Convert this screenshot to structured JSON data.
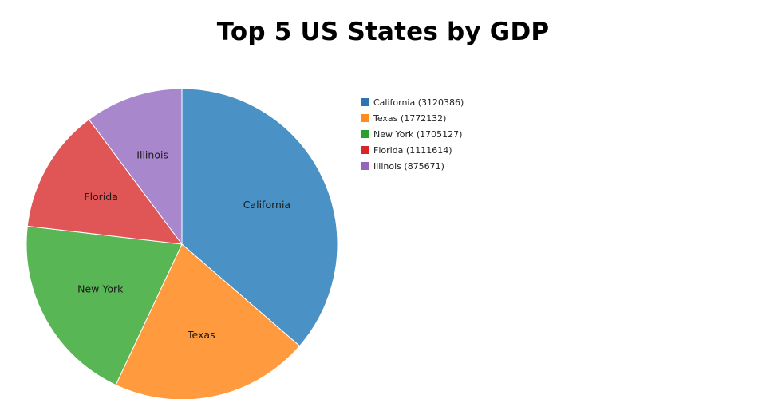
{
  "chart_data": {
    "type": "pie",
    "title": "Top 5 US States by GDP",
    "categories": [
      "California",
      "Texas",
      "New York",
      "Florida",
      "Illinois"
    ],
    "values": [
      3120386,
      1772132,
      1705127,
      1111614,
      875671
    ],
    "colors": [
      "#4a92c5",
      "#ff9b3e",
      "#59b655",
      "#e05555",
      "#a987cc"
    ],
    "legend_colors": [
      "#2e74b5",
      "#ff8c1a",
      "#2ca02c",
      "#d62728",
      "#9467bd"
    ],
    "legend": [
      "California (3120386)",
      "Texas (1772132)",
      "New York (1705127)",
      "Florida (1111614)",
      "Illinois (875671)"
    ],
    "legend_position": "top-right"
  }
}
